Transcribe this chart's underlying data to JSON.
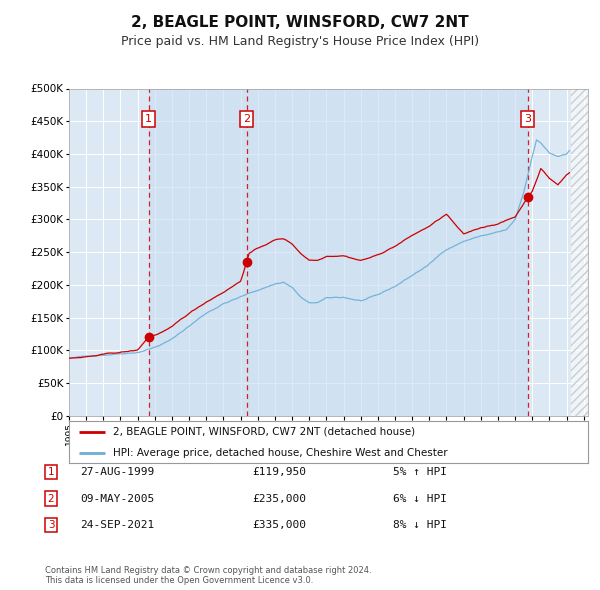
{
  "title": "2, BEAGLE POINT, WINSFORD, CW7 2NT",
  "subtitle": "Price paid vs. HM Land Registry's House Price Index (HPI)",
  "title_fontsize": 11,
  "subtitle_fontsize": 9,
  "background_color": "#ffffff",
  "plot_bg_color": "#dce9f5",
  "grid_color": "#ffffff",
  "shade_color": "#c8ddf0",
  "hatch_color": "#bbbbbb",
  "ylim": [
    0,
    500000
  ],
  "yticks": [
    0,
    50000,
    100000,
    150000,
    200000,
    250000,
    300000,
    350000,
    400000,
    450000,
    500000
  ],
  "xmin": 1995.0,
  "xmax": 2025.25,
  "hatch_start": 2024.25,
  "legend_entry1": "2, BEAGLE POINT, WINSFORD, CW7 2NT (detached house)",
  "legend_entry2": "HPI: Average price, detached house, Cheshire West and Chester",
  "hpi_color": "#6baed6",
  "sale_color": "#cc0000",
  "dashed_line_color": "#cc0000",
  "footer_text": "Contains HM Land Registry data © Crown copyright and database right 2024.\nThis data is licensed under the Open Government Licence v3.0.",
  "transactions": [
    {
      "num": 1,
      "date": "27-AUG-1999",
      "price": 119950,
      "year": 1999.648,
      "pct": "5%",
      "dir": "↑"
    },
    {
      "num": 2,
      "date": "09-MAY-2005",
      "price": 235000,
      "year": 2005.353,
      "pct": "6%",
      "dir": "↓"
    },
    {
      "num": 3,
      "date": "24-SEP-2021",
      "price": 335000,
      "year": 2021.729,
      "pct": "8%",
      "dir": "↓"
    }
  ]
}
